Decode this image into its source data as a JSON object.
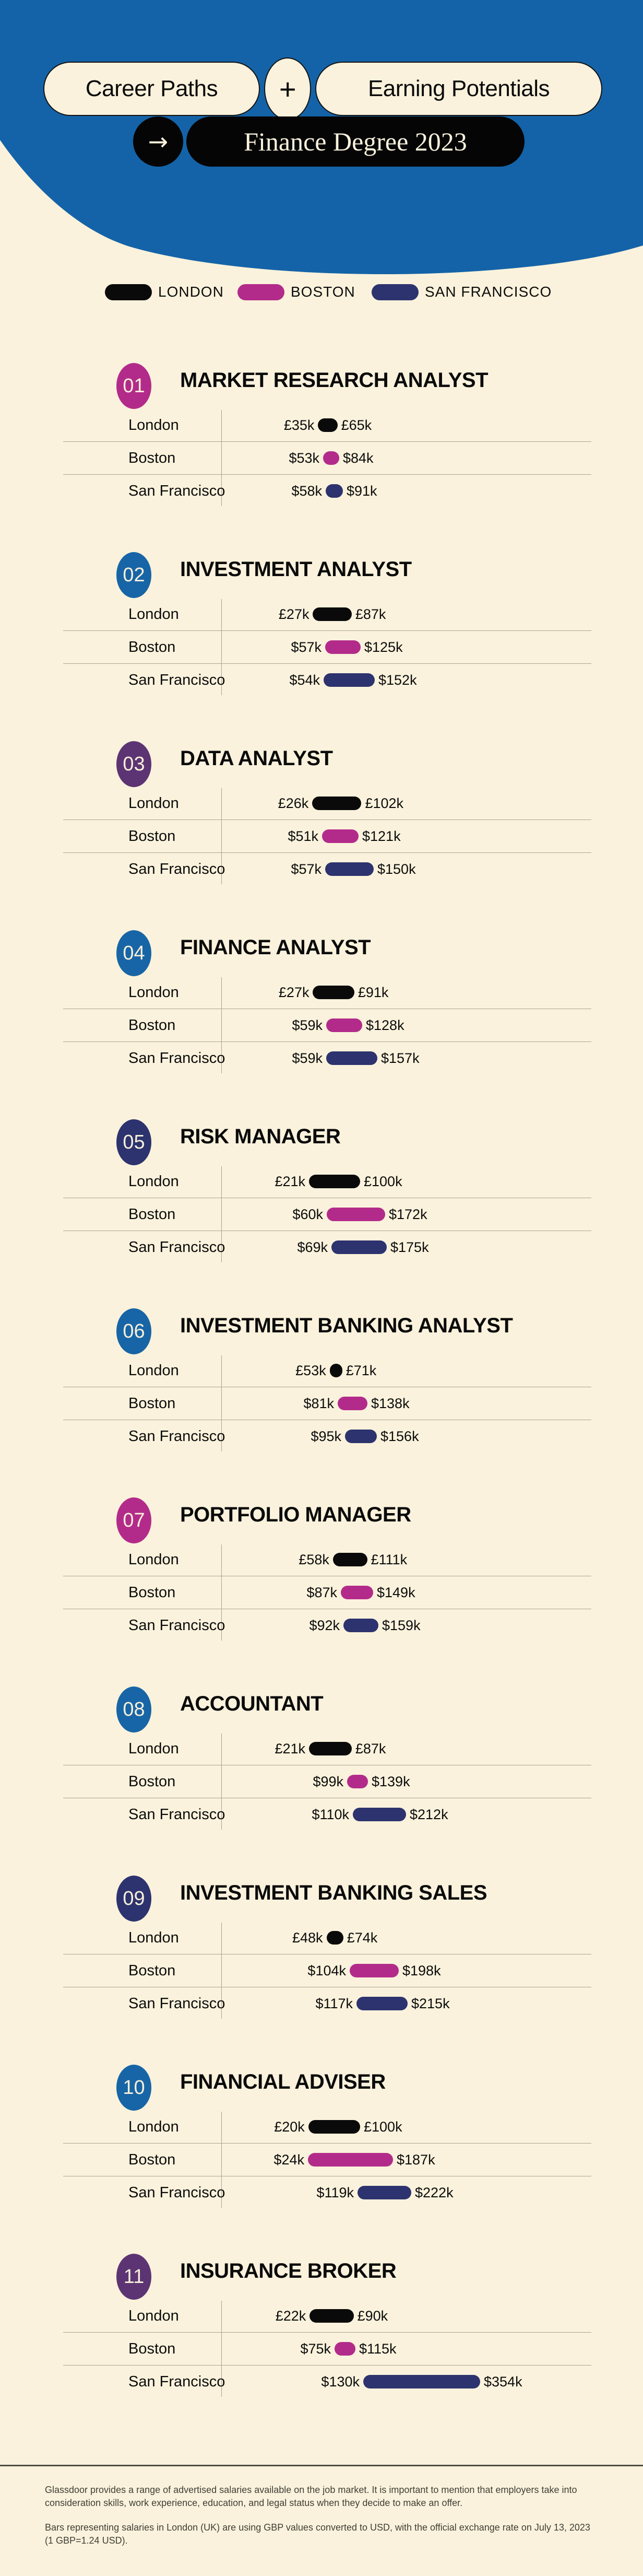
{
  "header": {
    "pill1": "Career Paths",
    "plus": "+",
    "pill2": "Earning Potentials",
    "arrow": "→",
    "banner": "Finance Degree 2023"
  },
  "colors": {
    "background": "#faf2dc",
    "header_blue": "#1463a8",
    "london": "#0a0a0a",
    "boston": "#b32b8a",
    "sf": "#2d336e",
    "badge_blue": "#1765a6",
    "badge_magenta": "#b32b8a",
    "badge_navy": "#2d336e",
    "badge_purple": "#5c3473"
  },
  "legend": [
    {
      "label": "LONDON",
      "color_key": "london"
    },
    {
      "label": "BOSTON",
      "color_key": "boston"
    },
    {
      "label": "SAN FRANCISCO",
      "color_key": "sf"
    }
  ],
  "sections": [
    {
      "number": "01",
      "title": "MARKET RESEARCH ANALYST",
      "badge_color_key": "badge_magenta",
      "rows": [
        {
          "city": "London",
          "min_label": "£35k",
          "max_label": "£65k",
          "min": 35,
          "max": 65,
          "currency": "GBP",
          "color_key": "london"
        },
        {
          "city": "Boston",
          "min_label": "$53k",
          "max_label": "$84k",
          "min": 53,
          "max": 84,
          "currency": "USD",
          "color_key": "boston"
        },
        {
          "city": "San Francisco",
          "min_label": "$58k",
          "max_label": "$91k",
          "min": 58,
          "max": 91,
          "currency": "USD",
          "color_key": "sf"
        }
      ]
    },
    {
      "number": "02",
      "title": "INVESTMENT ANALYST",
      "badge_color_key": "badge_blue",
      "rows": [
        {
          "city": "London",
          "min_label": "£27k",
          "max_label": "£87k",
          "min": 27,
          "max": 87,
          "currency": "GBP",
          "color_key": "london"
        },
        {
          "city": "Boston",
          "min_label": "$57k",
          "max_label": "$125k",
          "min": 57,
          "max": 125,
          "currency": "USD",
          "color_key": "boston"
        },
        {
          "city": "San Francisco",
          "min_label": "$54k",
          "max_label": "$152k",
          "min": 54,
          "max": 152,
          "currency": "USD",
          "color_key": "sf"
        }
      ]
    },
    {
      "number": "03",
      "title": "DATA ANALYST",
      "badge_color_key": "badge_purple",
      "rows": [
        {
          "city": "London",
          "min_label": "£26k",
          "max_label": "£102k",
          "min": 26,
          "max": 102,
          "currency": "GBP",
          "color_key": "london"
        },
        {
          "city": "Boston",
          "min_label": "$51k",
          "max_label": "$121k",
          "min": 51,
          "max": 121,
          "currency": "USD",
          "color_key": "boston"
        },
        {
          "city": "San Francisco",
          "min_label": "$57k",
          "max_label": "$150k",
          "min": 57,
          "max": 150,
          "currency": "USD",
          "color_key": "sf"
        }
      ]
    },
    {
      "number": "04",
      "title": "FINANCE ANALYST",
      "badge_color_key": "badge_blue",
      "rows": [
        {
          "city": "London",
          "min_label": "£27k",
          "max_label": "£91k",
          "min": 27,
          "max": 91,
          "currency": "GBP",
          "color_key": "london"
        },
        {
          "city": "Boston",
          "min_label": "$59k",
          "max_label": "$128k",
          "min": 59,
          "max": 128,
          "currency": "USD",
          "color_key": "boston"
        },
        {
          "city": "San Francisco",
          "min_label": "$59k",
          "max_label": "$157k",
          "min": 59,
          "max": 157,
          "currency": "USD",
          "color_key": "sf"
        }
      ]
    },
    {
      "number": "05",
      "title": "RISK MANAGER",
      "badge_color_key": "badge_navy",
      "rows": [
        {
          "city": "London",
          "min_label": "£21k",
          "max_label": "£100k",
          "min": 21,
          "max": 100,
          "currency": "GBP",
          "color_key": "london"
        },
        {
          "city": "Boston",
          "min_label": "$60k",
          "max_label": "$172k",
          "min": 60,
          "max": 172,
          "currency": "USD",
          "color_key": "boston"
        },
        {
          "city": "San Francisco",
          "min_label": "$69k",
          "max_label": "$175k",
          "min": 69,
          "max": 175,
          "currency": "USD",
          "color_key": "sf"
        }
      ]
    },
    {
      "number": "06",
      "title": "INVESTMENT BANKING ANALYST",
      "badge_color_key": "badge_blue",
      "rows": [
        {
          "city": "London",
          "min_label": "£53k",
          "max_label": "£71k",
          "min": 53,
          "max": 71,
          "currency": "GBP",
          "color_key": "london"
        },
        {
          "city": "Boston",
          "min_label": "$81k",
          "max_label": "$138k",
          "min": 81,
          "max": 138,
          "currency": "USD",
          "color_key": "boston"
        },
        {
          "city": "San Francisco",
          "min_label": "$95k",
          "max_label": "$156k",
          "min": 95,
          "max": 156,
          "currency": "USD",
          "color_key": "sf"
        }
      ]
    },
    {
      "number": "07",
      "title": "PORTFOLIO MANAGER",
      "badge_color_key": "badge_magenta",
      "rows": [
        {
          "city": "London",
          "min_label": "£58k",
          "max_label": "£111k",
          "min": 58,
          "max": 111,
          "currency": "GBP",
          "color_key": "london"
        },
        {
          "city": "Boston",
          "min_label": "$87k",
          "max_label": "$149k",
          "min": 87,
          "max": 149,
          "currency": "USD",
          "color_key": "boston"
        },
        {
          "city": "San Francisco",
          "min_label": "$92k",
          "max_label": "$159k",
          "min": 92,
          "max": 159,
          "currency": "USD",
          "color_key": "sf"
        }
      ]
    },
    {
      "number": "08",
      "title": "ACCOUNTANT",
      "badge_color_key": "badge_blue",
      "rows": [
        {
          "city": "London",
          "min_label": "£21k",
          "max_label": "£87k",
          "min": 21,
          "max": 87,
          "currency": "GBP",
          "color_key": "london"
        },
        {
          "city": "Boston",
          "min_label": "$99k",
          "max_label": "$139k",
          "min": 99,
          "max": 139,
          "currency": "USD",
          "color_key": "boston"
        },
        {
          "city": "San Francisco",
          "min_label": "$110k",
          "max_label": "$212k",
          "min": 110,
          "max": 212,
          "currency": "USD",
          "color_key": "sf"
        }
      ]
    },
    {
      "number": "09",
      "title": "INVESTMENT BANKING SALES",
      "badge_color_key": "badge_navy",
      "rows": [
        {
          "city": "London",
          "min_label": "£48k",
          "max_label": "£74k",
          "min": 48,
          "max": 74,
          "currency": "GBP",
          "color_key": "london"
        },
        {
          "city": "Boston",
          "min_label": "$104k",
          "max_label": "$198k",
          "min": 104,
          "max": 198,
          "currency": "USD",
          "color_key": "boston"
        },
        {
          "city": "San Francisco",
          "min_label": "$117k",
          "max_label": "$215k",
          "min": 117,
          "max": 215,
          "currency": "USD",
          "color_key": "sf"
        }
      ]
    },
    {
      "number": "10",
      "title": "FINANCIAL ADVISER",
      "badge_color_key": "badge_blue",
      "rows": [
        {
          "city": "London",
          "min_label": "£20k",
          "max_label": "£100k",
          "min": 20,
          "max": 100,
          "currency": "GBP",
          "color_key": "london"
        },
        {
          "city": "Boston",
          "min_label": "$24k",
          "max_label": "$187k",
          "min": 24,
          "max": 187,
          "currency": "USD",
          "color_key": "boston"
        },
        {
          "city": "San Francisco",
          "min_label": "$119k",
          "max_label": "$222k",
          "min": 119,
          "max": 222,
          "currency": "USD",
          "color_key": "sf"
        }
      ]
    },
    {
      "number": "11",
      "title": "INSURANCE BROKER",
      "badge_color_key": "badge_purple",
      "rows": [
        {
          "city": "London",
          "min_label": "£22k",
          "max_label": "£90k",
          "min": 22,
          "max": 90,
          "currency": "GBP",
          "color_key": "london"
        },
        {
          "city": "Boston",
          "min_label": "$75k",
          "max_label": "$115k",
          "min": 75,
          "max": 115,
          "currency": "USD",
          "color_key": "boston"
        },
        {
          "city": "San Francisco",
          "min_label": "$130k",
          "max_label": "$354k",
          "min": 130,
          "max": 354,
          "currency": "USD",
          "color_key": "sf"
        }
      ]
    }
  ],
  "footer": {
    "para1": "Glassdoor provides a range of advertised salaries available on the job market. It is important to mention that employers take into consideration skills, work experience, education, and legal status when they decide to make an offer.",
    "para2": "Bars representing salaries in London (UK) are using GBP values converted to USD, with the official exchange rate on July 13, 2023 (1 GBP=1.24 USD)."
  },
  "chart_data": {
    "type": "bar",
    "subtype": "salary-range-bars",
    "title": "Career Paths + Earning Potentials → Finance Degree 2023",
    "unit": "thousands per year",
    "gbp_to_usd_rate": 1.24,
    "legend_position": "top",
    "categories": [
      "Market Research Analyst",
      "Investment Analyst",
      "Data Analyst",
      "Finance Analyst",
      "Risk Manager",
      "Investment Banking Analyst",
      "Portfolio Manager",
      "Accountant",
      "Investment Banking Sales",
      "Financial Adviser",
      "Insurance Broker"
    ],
    "series": [
      {
        "name": "London",
        "currency": "GBP",
        "ranges": [
          [
            35,
            65
          ],
          [
            27,
            87
          ],
          [
            26,
            102
          ],
          [
            27,
            91
          ],
          [
            21,
            100
          ],
          [
            53,
            71
          ],
          [
            58,
            111
          ],
          [
            21,
            87
          ],
          [
            48,
            74
          ],
          [
            20,
            100
          ],
          [
            22,
            90
          ]
        ]
      },
      {
        "name": "Boston",
        "currency": "USD",
        "ranges": [
          [
            53,
            84
          ],
          [
            57,
            125
          ],
          [
            51,
            121
          ],
          [
            59,
            128
          ],
          [
            60,
            172
          ],
          [
            81,
            138
          ],
          [
            87,
            149
          ],
          [
            99,
            139
          ],
          [
            104,
            198
          ],
          [
            24,
            187
          ],
          [
            75,
            115
          ]
        ]
      },
      {
        "name": "San Francisco",
        "currency": "USD",
        "ranges": [
          [
            58,
            91
          ],
          [
            54,
            152
          ],
          [
            57,
            150
          ],
          [
            59,
            157
          ],
          [
            69,
            175
          ],
          [
            95,
            156
          ],
          [
            92,
            159
          ],
          [
            110,
            212
          ],
          [
            117,
            215
          ],
          [
            119,
            222
          ],
          [
            130,
            354
          ]
        ]
      }
    ],
    "source_note": "Glassdoor advertised salary ranges"
  }
}
